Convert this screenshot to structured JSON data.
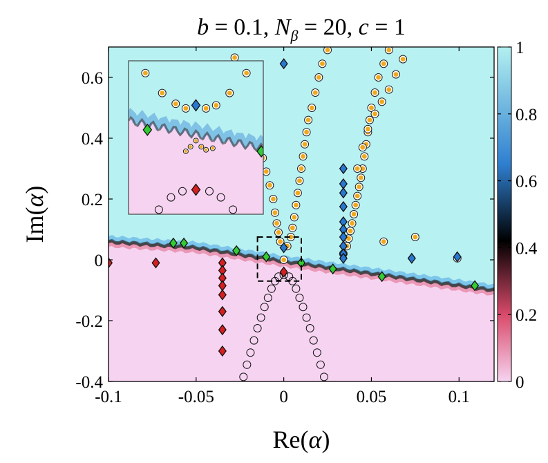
{
  "chart_data": {
    "type": "heatmap",
    "title": "b = 0.1, N_β = 20, c = 1",
    "title_parts": {
      "b": "b = 0.1,",
      "n": "N",
      "n_sub": "β",
      "n_rest": "= 20,",
      "c": "c = 1"
    },
    "xlabel": "Re(α)",
    "ylabel": "Im(α)",
    "xlim": [
      -0.1,
      0.12
    ],
    "ylim": [
      -0.4,
      0.7
    ],
    "xticks": [
      -0.1,
      -0.05,
      0,
      0.05,
      0.1
    ],
    "xtick_labels": [
      "-0.1",
      "-0.05",
      "0",
      "0.05",
      "0.1"
    ],
    "yticks": [
      -0.4,
      -0.2,
      0,
      0.2,
      0.4,
      0.6
    ],
    "ytick_labels": [
      "-0.4",
      "-0.2",
      "0",
      "0.2",
      "0.4",
      "0.6"
    ],
    "colorbar": {
      "range": [
        0,
        1
      ],
      "ticks": [
        0,
        0.2,
        0.4,
        0.6,
        0.8,
        1
      ],
      "tick_labels": [
        "0",
        "0.2",
        "0.4",
        "0.6",
        "0.8",
        "1"
      ],
      "colormap": [
        "#f5d4f0",
        "#d94a6a",
        "#000000",
        "#2f7fd0",
        "#b3f0f0"
      ]
    },
    "colors": {
      "upper_region": "#b8f1f1",
      "lower_region": "#f6d4f1",
      "red_marker": "#d42020",
      "blue_marker": "#2878d0",
      "green_marker": "#33cc33",
      "orange_marker": "#f0a81c"
    },
    "boundary": [
      {
        "x": -0.1,
        "y": 0.06
      },
      {
        "x": -0.05,
        "y": 0.04
      },
      {
        "x": 0,
        "y": -0.005
      },
      {
        "x": 0.05,
        "y": -0.045
      },
      {
        "x": 0.12,
        "y": -0.1
      }
    ],
    "series": [
      {
        "marker": "diamond",
        "color": "red",
        "points": [
          [
            -0.1,
            -0.01
          ],
          [
            -0.073,
            -0.01
          ],
          [
            -0.035,
            -0.01
          ],
          [
            -0.035,
            -0.035
          ],
          [
            -0.035,
            -0.06
          ],
          [
            -0.035,
            -0.085
          ],
          [
            -0.035,
            -0.115
          ],
          [
            -0.035,
            -0.17
          ],
          [
            -0.035,
            -0.23
          ],
          [
            -0.035,
            -0.3
          ],
          [
            0,
            -0.04
          ]
        ]
      },
      {
        "marker": "diamond",
        "color": "green",
        "points": [
          [
            -0.063,
            0.055
          ],
          [
            -0.057,
            0.055
          ],
          [
            -0.027,
            0.03
          ],
          [
            -0.01,
            0.01
          ],
          [
            0.01,
            -0.01
          ],
          [
            0.028,
            -0.03
          ],
          [
            0.056,
            -0.055
          ],
          [
            0.109,
            -0.085
          ]
        ]
      },
      {
        "marker": "diamond",
        "color": "blue",
        "points": [
          [
            0,
            0.645
          ],
          [
            0,
            0.04
          ],
          [
            0.034,
            0.3
          ],
          [
            0.034,
            0.25
          ],
          [
            0.034,
            0.22
          ],
          [
            0.034,
            0.175
          ],
          [
            0.034,
            0.125
          ],
          [
            0.034,
            0.1
          ],
          [
            0.034,
            0.075
          ],
          [
            0.034,
            0.045
          ],
          [
            0.034,
            0.02
          ],
          [
            0.034,
            0.005
          ],
          [
            0.073,
            0.005
          ],
          [
            0.099,
            0.01
          ]
        ]
      },
      {
        "marker": "circle",
        "color": "orange",
        "points": [
          [
            -0.028,
            0.665
          ],
          [
            -0.026,
            0.625
          ],
          [
            -0.024,
            0.585
          ],
          [
            -0.022,
            0.545
          ],
          [
            -0.02,
            0.505
          ],
          [
            -0.018,
            0.465
          ],
          [
            -0.016,
            0.425
          ],
          [
            -0.014,
            0.38
          ],
          [
            -0.012,
            0.335
          ],
          [
            -0.01,
            0.29
          ],
          [
            -0.008,
            0.245
          ],
          [
            -0.006,
            0.2
          ],
          [
            -0.005,
            0.155
          ],
          [
            -0.004,
            0.12
          ],
          [
            -0.003,
            0.09
          ],
          [
            -0.002,
            0.06
          ],
          [
            0.002,
            0.045
          ],
          [
            0.004,
            0.075
          ],
          [
            0.005,
            0.105
          ],
          [
            0.006,
            0.14
          ],
          [
            0.007,
            0.18
          ],
          [
            0.008,
            0.22
          ],
          [
            0.009,
            0.26
          ],
          [
            0.01,
            0.3
          ],
          [
            0.011,
            0.34
          ],
          [
            0.012,
            0.38
          ],
          [
            0.013,
            0.42
          ],
          [
            0.014,
            0.46
          ],
          [
            0.016,
            0.5
          ],
          [
            0.018,
            0.55
          ],
          [
            0.02,
            0.6
          ],
          [
            0.022,
            0.645
          ],
          [
            0.025,
            0.69
          ],
          [
            0,
            0.0
          ],
          [
            0.034,
            0.02
          ],
          [
            0.036,
            0.045
          ],
          [
            0.037,
            0.07
          ],
          [
            0.038,
            0.095
          ],
          [
            0.039,
            0.12
          ],
          [
            0.04,
            0.15
          ],
          [
            0.041,
            0.18
          ],
          [
            0.042,
            0.21
          ],
          [
            0.043,
            0.24
          ],
          [
            0.044,
            0.27
          ],
          [
            0.045,
            0.3
          ],
          [
            0.046,
            0.34
          ],
          [
            0.047,
            0.38
          ],
          [
            0.048,
            0.42
          ],
          [
            0.049,
            0.46
          ],
          [
            0.05,
            0.5
          ],
          [
            0.052,
            0.55
          ],
          [
            0.054,
            0.6
          ],
          [
            0.057,
            0.645
          ],
          [
            0.06,
            0.69
          ],
          [
            0.042,
            0.3
          ],
          [
            0.045,
            0.37
          ],
          [
            0.048,
            0.43
          ],
          [
            0.052,
            0.48
          ],
          [
            0.056,
            0.52
          ],
          [
            0.06,
            0.56
          ],
          [
            0.064,
            0.61
          ],
          [
            0.068,
            0.66
          ],
          [
            0.057,
            0.06
          ],
          [
            0.075,
            0.075
          ],
          [
            0.099,
            0.005
          ]
        ]
      },
      {
        "marker": "circle",
        "color": "white",
        "points": [
          [
            -0.023,
            -0.385
          ],
          [
            -0.021,
            -0.345
          ],
          [
            -0.019,
            -0.305
          ],
          [
            -0.017,
            -0.265
          ],
          [
            -0.015,
            -0.225
          ],
          [
            -0.013,
            -0.19
          ],
          [
            -0.011,
            -0.155
          ],
          [
            -0.009,
            -0.125
          ],
          [
            -0.007,
            -0.095
          ],
          [
            -0.005,
            -0.07
          ],
          [
            -0.003,
            -0.055
          ],
          [
            0,
            -0.05
          ],
          [
            0.003,
            -0.055
          ],
          [
            0.005,
            -0.07
          ],
          [
            0.007,
            -0.095
          ],
          [
            0.009,
            -0.125
          ],
          [
            0.011,
            -0.155
          ],
          [
            0.013,
            -0.19
          ],
          [
            0.015,
            -0.225
          ],
          [
            0.017,
            -0.265
          ],
          [
            0.019,
            -0.305
          ],
          [
            0.021,
            -0.345
          ],
          [
            0.023,
            -0.385
          ]
        ]
      }
    ],
    "inset": {
      "source_box": {
        "x0": -0.015,
        "x1": 0.01,
        "y0": -0.07,
        "y1": 0.075
      },
      "points": {
        "orange": [
          [
            -0.75,
            0.92
          ],
          [
            -0.5,
            0.79
          ],
          [
            -0.3,
            0.72
          ],
          [
            -0.15,
            0.69
          ],
          [
            0.15,
            0.69
          ],
          [
            0.3,
            0.71
          ],
          [
            0.5,
            0.79
          ],
          [
            0.75,
            0.92
          ],
          [
            0,
            0.48
          ],
          [
            -0.08,
            0.44
          ],
          [
            0.08,
            0.44
          ],
          [
            -0.15,
            0.41
          ],
          [
            0.15,
            0.42
          ],
          [
            0.25,
            0.43
          ]
        ],
        "blue": [
          [
            0,
            0.71
          ]
        ],
        "green": [
          [
            -0.72,
            0.55
          ],
          [
            0.97,
            0.41
          ]
        ],
        "red": [
          [
            0,
            0.16
          ]
        ],
        "white": [
          [
            -0.75,
            -0.08
          ],
          [
            -0.55,
            0.03
          ],
          [
            -0.37,
            0.11
          ],
          [
            -0.2,
            0.15
          ],
          [
            0.2,
            0.15
          ],
          [
            0.37,
            0.11
          ],
          [
            0.55,
            0.03
          ],
          [
            0.75,
            -0.08
          ]
        ]
      }
    }
  }
}
